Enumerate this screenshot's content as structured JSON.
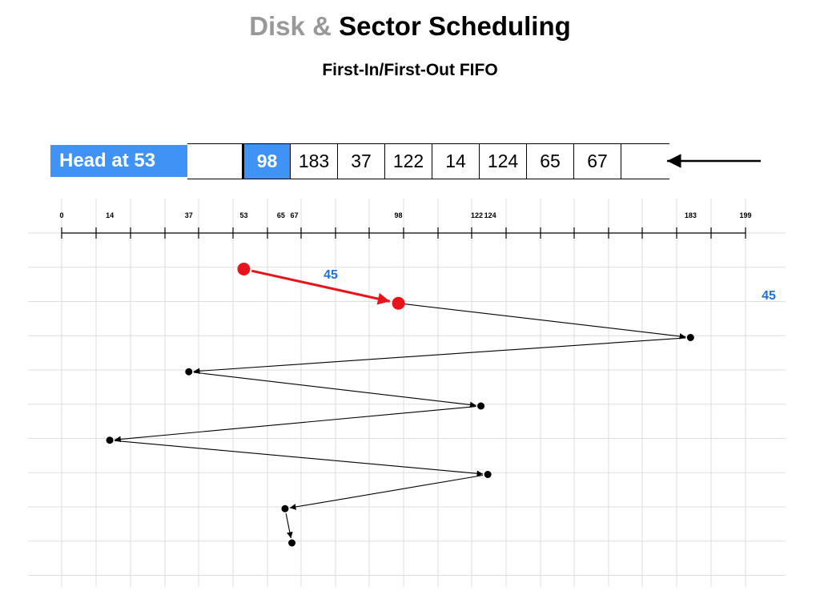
{
  "title": {
    "part1": "Disk & ",
    "part2": "Sector Scheduling"
  },
  "subtitle": "First-In/First-Out FIFO",
  "head_label": "Head at 53",
  "head_position": 53,
  "queue": [
    "98",
    "183",
    "37",
    "122",
    "14",
    "124",
    "65",
    "67"
  ],
  "axis_labels": [
    "0",
    "14",
    "37",
    "53",
    "65",
    "67",
    "98",
    "122",
    "124",
    "183",
    "199"
  ],
  "path": [
    53,
    98,
    183,
    37,
    122,
    14,
    124,
    65,
    67
  ],
  "step_label": "45",
  "total_label": "45",
  "colors": {
    "accent": "#3f93f5",
    "current_move": "#e8141b",
    "label_blue": "#1a73d9"
  }
}
